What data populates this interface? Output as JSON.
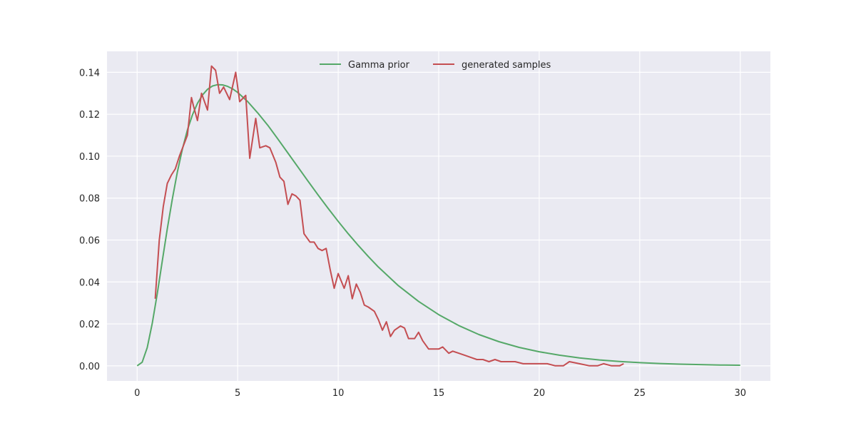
{
  "chart_data": {
    "type": "line",
    "title": "",
    "xlabel": "",
    "ylabel": "",
    "xlim": [
      -1.5,
      31.5
    ],
    "ylim": [
      -0.0072,
      0.15
    ],
    "xticks": [
      0,
      5,
      10,
      15,
      20,
      25,
      30
    ],
    "xtick_labels": [
      "0",
      "5",
      "10",
      "15",
      "20",
      "25",
      "30"
    ],
    "yticks": [
      0.0,
      0.02,
      0.04,
      0.06,
      0.08,
      0.1,
      0.12,
      0.14
    ],
    "ytick_labels": [
      "0.00",
      "0.02",
      "0.04",
      "0.06",
      "0.08",
      "0.10",
      "0.12",
      "0.14"
    ],
    "grid": true,
    "legend_position": "upper center",
    "series": [
      {
        "name": "Gamma prior",
        "color": "#55a868",
        "x": [
          0,
          0.25,
          0.5,
          0.75,
          1,
          1.25,
          1.5,
          1.75,
          2,
          2.25,
          2.5,
          2.75,
          3,
          3.25,
          3.5,
          3.75,
          4,
          4.25,
          4.5,
          4.75,
          5,
          5.5,
          6,
          6.5,
          7,
          7.5,
          8,
          8.5,
          9,
          9.5,
          10,
          10.5,
          11,
          11.5,
          12,
          13,
          14,
          15,
          16,
          17,
          18,
          19,
          20,
          21,
          22,
          23,
          24,
          25,
          26,
          27,
          28,
          29,
          30
        ],
        "y": [
          0,
          0.0017,
          0.0087,
          0.0202,
          0.0345,
          0.05,
          0.0653,
          0.0796,
          0.0924,
          0.1034,
          0.1125,
          0.1197,
          0.1252,
          0.1292,
          0.1319,
          0.1335,
          0.1341,
          0.134,
          0.1333,
          0.1321,
          0.1304,
          0.126,
          0.1206,
          0.1147,
          0.1082,
          0.1015,
          0.0948,
          0.0881,
          0.0815,
          0.0751,
          0.0689,
          0.063,
          0.0574,
          0.0521,
          0.0471,
          0.0382,
          0.0307,
          0.0244,
          0.0192,
          0.0149,
          0.0115,
          0.0088,
          0.0067,
          0.0051,
          0.0038,
          0.0028,
          0.0021,
          0.0015,
          0.0011,
          0.0008,
          0.0006,
          0.0004,
          0.0003
        ]
      },
      {
        "name": "generated samples",
        "color": "#c44e52",
        "x": [
          0.9,
          1.1,
          1.3,
          1.5,
          1.7,
          1.9,
          2.1,
          2.3,
          2.5,
          2.7,
          2.8,
          3.0,
          3.2,
          3.5,
          3.7,
          3.9,
          4.1,
          4.3,
          4.6,
          4.9,
          5.1,
          5.4,
          5.6,
          5.9,
          6.1,
          6.4,
          6.6,
          6.9,
          7.1,
          7.3,
          7.5,
          7.7,
          7.9,
          8.1,
          8.3,
          8.6,
          8.8,
          9.0,
          9.2,
          9.4,
          9.6,
          9.8,
          10.0,
          10.3,
          10.5,
          10.7,
          10.9,
          11.1,
          11.3,
          11.5,
          11.8,
          12.0,
          12.2,
          12.4,
          12.6,
          12.8,
          13.1,
          13.3,
          13.5,
          13.8,
          14.0,
          14.2,
          14.5,
          14.8,
          15.0,
          15.2,
          15.5,
          15.7,
          16.0,
          16.3,
          16.6,
          16.9,
          17.2,
          17.5,
          17.8,
          18.1,
          18.4,
          18.8,
          19.2,
          19.6,
          20.0,
          20.4,
          20.8,
          21.2,
          21.5,
          22.0,
          22.5,
          22.9,
          23.2,
          23.6,
          24.0,
          24.2
        ],
        "y": [
          0.032,
          0.06,
          0.076,
          0.087,
          0.091,
          0.094,
          0.1,
          0.105,
          0.11,
          0.128,
          0.124,
          0.117,
          0.13,
          0.122,
          0.143,
          0.141,
          0.13,
          0.133,
          0.127,
          0.14,
          0.126,
          0.129,
          0.099,
          0.118,
          0.104,
          0.105,
          0.104,
          0.097,
          0.09,
          0.088,
          0.077,
          0.082,
          0.081,
          0.079,
          0.063,
          0.059,
          0.059,
          0.056,
          0.055,
          0.056,
          0.046,
          0.037,
          0.044,
          0.037,
          0.043,
          0.032,
          0.039,
          0.035,
          0.029,
          0.028,
          0.026,
          0.022,
          0.017,
          0.021,
          0.014,
          0.017,
          0.019,
          0.018,
          0.013,
          0.013,
          0.016,
          0.012,
          0.008,
          0.008,
          0.008,
          0.009,
          0.006,
          0.007,
          0.006,
          0.005,
          0.004,
          0.003,
          0.003,
          0.002,
          0.003,
          0.002,
          0.002,
          0.002,
          0.001,
          0.001,
          0.001,
          0.001,
          0.0,
          0.0,
          0.002,
          0.001,
          0.0,
          0.0,
          0.001,
          0.0,
          0.0,
          0.001
        ]
      }
    ]
  }
}
